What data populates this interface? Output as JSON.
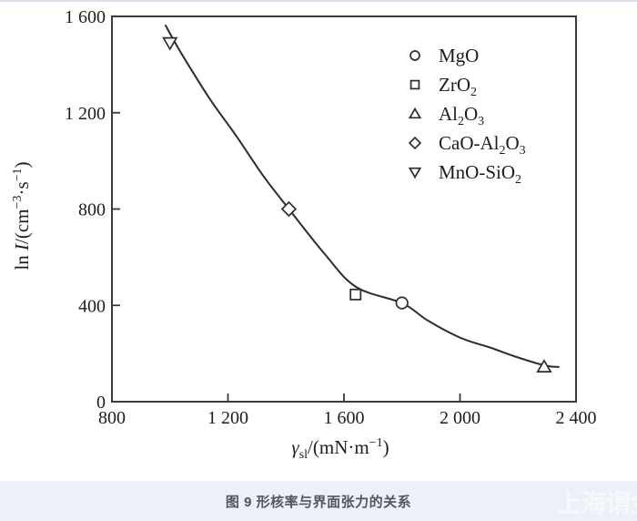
{
  "page": {
    "background": "#ffffff",
    "top_border_color": "#dce2f0"
  },
  "caption_bar": {
    "background": "#eef0f7",
    "text": "图 9 形核率与界面张力的关系",
    "text_color": "#54555e",
    "watermark": "上海谓金",
    "watermark_color": "#f7f8fc"
  },
  "chart_data": {
    "type": "scatter",
    "title": "",
    "xlabel": "γsl/(mN·m−1)",
    "ylabel": "ln I/(cm−3·s−1)",
    "xlabel_segments": [
      {
        "t": "γ",
        "i": true
      },
      {
        "sub": "sl"
      },
      {
        "t": "/(mN·m"
      },
      {
        "sup": "−1"
      },
      {
        "t": ")"
      }
    ],
    "ylabel_segments": [
      {
        "t": "ln "
      },
      {
        "t": "I",
        "i": true
      },
      {
        "t": "/(cm"
      },
      {
        "sup": "−3"
      },
      {
        "t": "·s"
      },
      {
        "sup": "−1"
      },
      {
        "t": ")"
      }
    ],
    "xlim": [
      800,
      2400
    ],
    "ylim": [
      0,
      1600
    ],
    "xticks": [
      800,
      1200,
      1600,
      2000,
      2400
    ],
    "xtick_labels": [
      "800",
      "1 200",
      "1 600",
      "2 000",
      "2 400"
    ],
    "yticks": [
      0,
      400,
      800,
      1200,
      1600
    ],
    "ytick_labels": [
      "0",
      "400",
      "800",
      "1 200",
      "1 600"
    ],
    "grid": false,
    "legend_position": "top-right-inside",
    "axis_color": "#3a3a3a",
    "curve_color": "#2c2c2c",
    "marker_color": "#2c2c2c",
    "series": [
      {
        "name": "MgO",
        "marker": "circle",
        "label_segments": [
          {
            "t": "MgO"
          }
        ],
        "points": [
          [
            1800,
            410
          ]
        ]
      },
      {
        "name": "ZrO2",
        "marker": "square",
        "label_segments": [
          {
            "t": "ZrO"
          },
          {
            "sub": "2"
          }
        ],
        "points": [
          [
            1640,
            445
          ]
        ]
      },
      {
        "name": "Al2O3",
        "marker": "triangle-up",
        "label_segments": [
          {
            "t": "Al"
          },
          {
            "sub": "2"
          },
          {
            "t": "O"
          },
          {
            "sub": "3"
          }
        ],
        "points": [
          [
            2290,
            145
          ]
        ]
      },
      {
        "name": "CaO-Al2O3",
        "marker": "diamond",
        "label_segments": [
          {
            "t": "CaO-Al"
          },
          {
            "sub": "2"
          },
          {
            "t": "O"
          },
          {
            "sub": "3"
          }
        ],
        "points": [
          [
            1410,
            800
          ]
        ]
      },
      {
        "name": "MnO-SiO2",
        "marker": "triangle-down",
        "label_segments": [
          {
            "t": "MnO-SiO"
          },
          {
            "sub": "2"
          }
        ],
        "points": [
          [
            1000,
            1490
          ]
        ]
      }
    ],
    "fit_curve": {
      "points": [
        [
          985,
          1562
        ],
        [
          1042,
          1441
        ],
        [
          1136,
          1260
        ],
        [
          1230,
          1101
        ],
        [
          1324,
          934
        ],
        [
          1409,
          802
        ],
        [
          1531,
          617
        ],
        [
          1641,
          477
        ],
        [
          1801,
          409
        ],
        [
          1889,
          337
        ],
        [
          2002,
          265
        ],
        [
          2108,
          223
        ],
        [
          2186,
          189
        ],
        [
          2290,
          151
        ],
        [
          2340,
          144
        ]
      ]
    }
  }
}
